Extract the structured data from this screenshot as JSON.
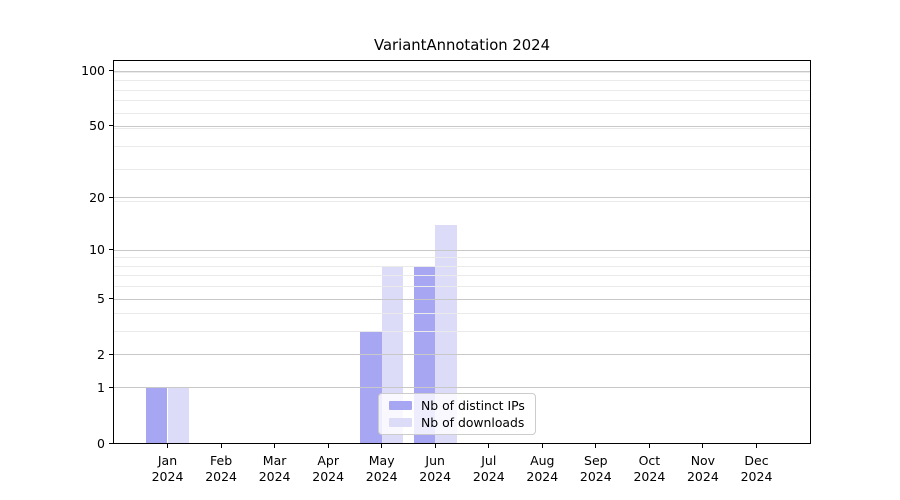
{
  "chart_data": {
    "type": "bar",
    "title": "VariantAnnotation 2024",
    "categories": [
      "Jan",
      "Feb",
      "Mar",
      "Apr",
      "May",
      "Jun",
      "Jul",
      "Aug",
      "Sep",
      "Oct",
      "Nov",
      "Dec"
    ],
    "category_year": "2024",
    "series": [
      {
        "name": "Nb of distinct IPs",
        "color": "#a6a6f2",
        "values": [
          1,
          0,
          0,
          0,
          3,
          8,
          0,
          0,
          0,
          0,
          0,
          0
        ]
      },
      {
        "name": "Nb of downloads",
        "color": "#dcdcf8",
        "values": [
          1,
          0,
          0,
          0,
          8,
          14,
          0,
          0,
          0,
          0,
          0,
          0
        ]
      }
    ],
    "yscale": "log1p",
    "yticks_major": [
      0,
      1,
      2,
      5,
      10,
      20,
      50,
      100
    ],
    "yticks_minor": [
      3,
      4,
      6,
      7,
      8,
      9,
      19,
      29,
      39,
      49,
      59,
      69,
      79,
      89,
      99
    ],
    "ylim": [
      0,
      113
    ],
    "xlim": [
      -1,
      12
    ],
    "grid": true,
    "bar_width_units": 0.4,
    "legend_position": "lower-center-inside",
    "colors": {
      "axis": "#000000",
      "grid_major": "#c8c8c8",
      "grid_minor": "#eaeaea",
      "background": "#ffffff",
      "text": "#000000"
    }
  }
}
